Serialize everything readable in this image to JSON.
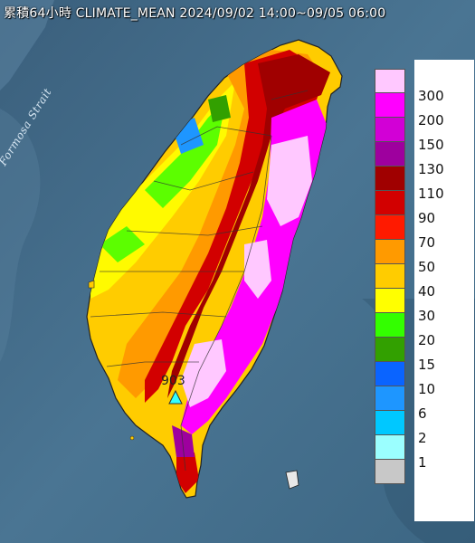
{
  "title": "累積64小時 CLIMATE_MEAN 2024/09/02 14:00~09/05 06:00",
  "strait_label": "Formosa Strait",
  "station": {
    "label": "903",
    "icon": "triangle-marker-icon"
  },
  "legend": {
    "items": [
      {
        "label": "300",
        "color": "#ffc8ff"
      },
      {
        "label": "200",
        "color": "#ff00ff"
      },
      {
        "label": "150",
        "color": "#d200d6"
      },
      {
        "label": "130",
        "color": "#9e009e"
      },
      {
        "label": "110",
        "color": "#a00000"
      },
      {
        "label": "90",
        "color": "#d20000"
      },
      {
        "label": "70",
        "color": "#ff1a00"
      },
      {
        "label": "50",
        "color": "#ff9a00"
      },
      {
        "label": "40",
        "color": "#ffcc00"
      },
      {
        "label": "30",
        "color": "#ffff00"
      },
      {
        "label": "20",
        "color": "#33ff00"
      },
      {
        "label": "15",
        "color": "#32a000"
      },
      {
        "label": "10",
        "color": "#0a64ff"
      },
      {
        "label": "6",
        "color": "#1e96ff"
      },
      {
        "label": "2",
        "color": "#00c8ff"
      },
      {
        "label": "1",
        "color": "#9bffff"
      },
      {
        "label": "",
        "color": "#c8c8c8"
      }
    ]
  }
}
